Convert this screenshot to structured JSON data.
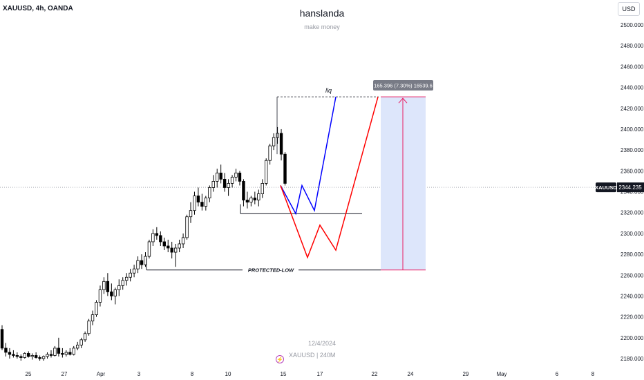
{
  "header": {
    "symbol_title": "XAUUSD, 4h, OANDA",
    "author": "hanslanda",
    "tagline": "make money",
    "currency": "USD"
  },
  "footer": {
    "date": "12/4/2024",
    "symbol_interval": "XAUUSD | 240M",
    "icon": "lightning-icon"
  },
  "annotations": {
    "liq_label": "llq",
    "protected_low_label": "PROTECTED-LOW",
    "measure_label": "165.396 (7.30%) 16539.6",
    "price_tag_symbol": "XAUUSD",
    "price_tag_value": "2344.235"
  },
  "colors": {
    "bull": "#ffffff",
    "bear": "#000000",
    "blue_path": "#0000ff",
    "red_path": "#ff0000",
    "measure_fill": "#dde6fb",
    "measure_line": "#e91e63"
  },
  "chart_data": {
    "type": "candlestick",
    "symbol": "XAUUSD",
    "timeframe": "4h",
    "ylim": [
      2170,
      2510
    ],
    "yticks": [
      2180,
      2200,
      2220,
      2240,
      2260,
      2280,
      2300,
      2320,
      2340,
      2360,
      2380,
      2400,
      2420,
      2440,
      2460,
      2480,
      2500
    ],
    "ytick_labels": [
      "2180.000",
      "2200.000",
      "2220.000",
      "2240.000",
      "2260.000",
      "2280.000",
      "2300.000",
      "2320.000",
      "2340.000",
      "2360.000",
      "2380.000",
      "2400.000",
      "2420.000",
      "2440.000",
      "2460.000",
      "2480.000",
      "2500.000"
    ],
    "xtick_labels": [
      "25",
      "27",
      "Apr",
      "3",
      "8",
      "10",
      "15",
      "17",
      "22",
      "24",
      "29",
      "May",
      "6",
      "8"
    ],
    "current_price": 2344.235,
    "candles": [
      [
        2208,
        2212,
        2188,
        2190
      ],
      [
        2190,
        2195,
        2182,
        2186
      ],
      [
        2186,
        2190,
        2180,
        2184
      ],
      [
        2184,
        2188,
        2181,
        2183
      ],
      [
        2183,
        2186,
        2180,
        2182
      ],
      [
        2182,
        2184,
        2178,
        2181
      ],
      [
        2181,
        2186,
        2180,
        2185
      ],
      [
        2185,
        2187,
        2181,
        2182
      ],
      [
        2182,
        2185,
        2179,
        2183
      ],
      [
        2183,
        2186,
        2180,
        2181
      ],
      [
        2181,
        2183,
        2178,
        2180
      ],
      [
        2180,
        2183,
        2178,
        2182
      ],
      [
        2182,
        2186,
        2180,
        2184
      ],
      [
        2184,
        2188,
        2181,
        2183
      ],
      [
        2183,
        2192,
        2182,
        2190
      ],
      [
        2190,
        2200,
        2182,
        2185
      ],
      [
        2185,
        2190,
        2181,
        2184
      ],
      [
        2184,
        2188,
        2182,
        2186
      ],
      [
        2186,
        2190,
        2183,
        2184
      ],
      [
        2184,
        2192,
        2183,
        2190
      ],
      [
        2190,
        2196,
        2188,
        2193
      ],
      [
        2193,
        2200,
        2190,
        2198
      ],
      [
        2198,
        2206,
        2196,
        2204
      ],
      [
        2204,
        2218,
        2202,
        2216
      ],
      [
        2216,
        2226,
        2212,
        2222
      ],
      [
        2222,
        2236,
        2220,
        2234
      ],
      [
        2234,
        2250,
        2230,
        2246
      ],
      [
        2246,
        2258,
        2242,
        2254
      ],
      [
        2254,
        2262,
        2240,
        2244
      ],
      [
        2244,
        2252,
        2236,
        2240
      ],
      [
        2240,
        2248,
        2232,
        2246
      ],
      [
        2246,
        2256,
        2240,
        2250
      ],
      [
        2250,
        2258,
        2246,
        2255
      ],
      [
        2255,
        2262,
        2250,
        2258
      ],
      [
        2258,
        2266,
        2254,
        2262
      ],
      [
        2262,
        2270,
        2258,
        2266
      ],
      [
        2266,
        2278,
        2262,
        2274
      ],
      [
        2274,
        2280,
        2266,
        2270
      ],
      [
        2270,
        2282,
        2268,
        2278
      ],
      [
        2278,
        2294,
        2276,
        2292
      ],
      [
        2292,
        2304,
        2288,
        2300
      ],
      [
        2300,
        2306,
        2294,
        2298
      ],
      [
        2298,
        2302,
        2288,
        2292
      ],
      [
        2292,
        2296,
        2284,
        2288
      ],
      [
        2288,
        2294,
        2282,
        2286
      ],
      [
        2286,
        2292,
        2276,
        2282
      ],
      [
        2282,
        2290,
        2268,
        2286
      ],
      [
        2286,
        2294,
        2282,
        2290
      ],
      [
        2290,
        2300,
        2286,
        2296
      ],
      [
        2296,
        2318,
        2294,
        2316
      ],
      [
        2316,
        2330,
        2310,
        2322
      ],
      [
        2322,
        2340,
        2318,
        2336
      ],
      [
        2336,
        2344,
        2326,
        2330
      ],
      [
        2330,
        2338,
        2322,
        2326
      ],
      [
        2326,
        2336,
        2322,
        2334
      ],
      [
        2334,
        2346,
        2330,
        2344
      ],
      [
        2344,
        2356,
        2340,
        2350
      ],
      [
        2350,
        2362,
        2344,
        2358
      ],
      [
        2358,
        2366,
        2348,
        2352
      ],
      [
        2352,
        2358,
        2340,
        2344
      ],
      [
        2344,
        2352,
        2336,
        2348
      ],
      [
        2348,
        2356,
        2344,
        2354
      ],
      [
        2354,
        2362,
        2350,
        2358
      ],
      [
        2358,
        2360,
        2346,
        2350
      ],
      [
        2350,
        2352,
        2326,
        2332
      ],
      [
        2332,
        2340,
        2324,
        2330
      ],
      [
        2330,
        2336,
        2326,
        2334
      ],
      [
        2334,
        2340,
        2328,
        2332
      ],
      [
        2332,
        2342,
        2326,
        2338
      ],
      [
        2338,
        2352,
        2334,
        2348
      ],
      [
        2348,
        2372,
        2346,
        2370
      ],
      [
        2370,
        2386,
        2366,
        2384
      ],
      [
        2384,
        2396,
        2380,
        2392
      ],
      [
        2392,
        2402,
        2386,
        2396
      ],
      [
        2396,
        2400,
        2370,
        2376
      ],
      [
        2376,
        2378,
        2346,
        2348
      ]
    ],
    "levels": {
      "liquidity_high": 2431,
      "protected_low": 2265,
      "range_low": 2319
    },
    "projections": {
      "blue_path": [
        2346,
        2319,
        2346,
        2322,
        2431
      ],
      "red_path": [
        2346,
        2277,
        2308,
        2284,
        2431
      ]
    },
    "measure": {
      "from": 2265,
      "to": 2431,
      "change": "165.396 (7.30%)",
      "ticks": "16539.6"
    }
  }
}
